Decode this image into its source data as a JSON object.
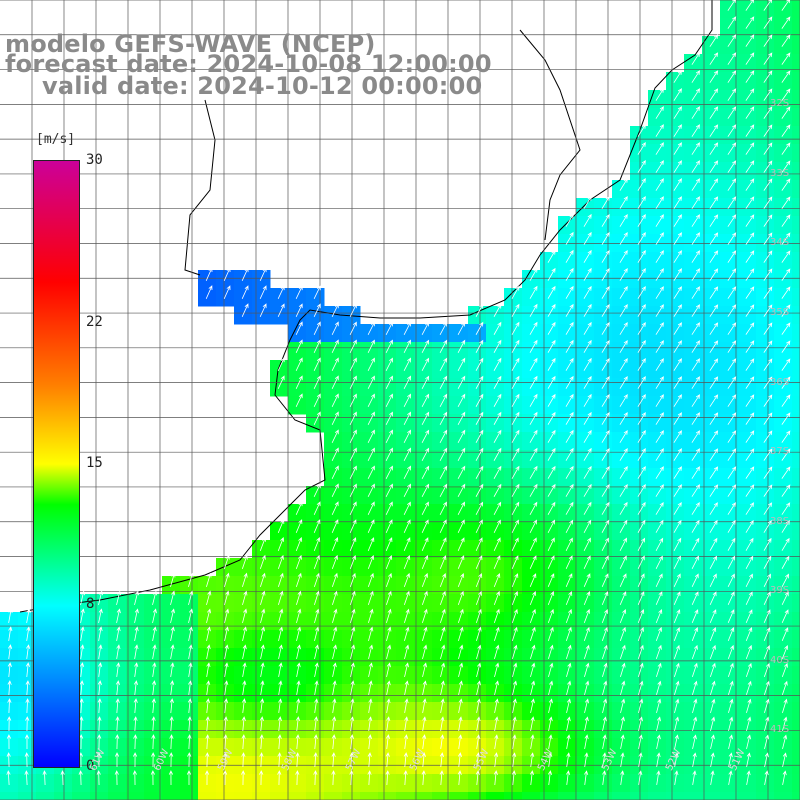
{
  "title": {
    "line1": "modelo GEFS-WAVE (NCEP)",
    "line2": "forecast date: 2024-10-08 12:00:00",
    "line3": "valid date: 2024-10-12 00:00:00"
  },
  "colorbar": {
    "unit": "[m/s]",
    "min": 0,
    "max": 30,
    "ticks": [
      {
        "label": "30",
        "value": 30
      },
      {
        "label": "22",
        "value": 22
      },
      {
        "label": "15",
        "value": 15
      },
      {
        "label": "8",
        "value": 8
      },
      {
        "label": "0",
        "value": 0
      }
    ]
  },
  "map": {
    "variable": "wind speed and direction",
    "lon_range": [
      -62.5,
      -50
    ],
    "lat_range": [
      -42,
      -30.5
    ],
    "lon_labels": [
      {
        "text": "61W",
        "lon": -61
      },
      {
        "text": "60W",
        "lon": -60
      },
      {
        "text": "59W",
        "lon": -59
      },
      {
        "text": "58W",
        "lon": -58
      },
      {
        "text": "57W",
        "lon": -57
      },
      {
        "text": "56W",
        "lon": -56
      },
      {
        "text": "55W",
        "lon": -55
      },
      {
        "text": "54W",
        "lon": -54
      },
      {
        "text": "53W",
        "lon": -53
      },
      {
        "text": "52W",
        "lon": -52
      },
      {
        "text": "51W",
        "lon": -51
      }
    ],
    "lat_labels": [
      {
        "text": "32S",
        "lat": -32
      },
      {
        "text": "33S",
        "lat": -33
      },
      {
        "text": "34S",
        "lat": -34
      },
      {
        "text": "35S",
        "lat": -35
      },
      {
        "text": "36S",
        "lat": -36
      },
      {
        "text": "37S",
        "lat": -37
      },
      {
        "text": "38S",
        "lat": -38
      },
      {
        "text": "39S",
        "lat": -39
      },
      {
        "text": "40S",
        "lat": -40
      },
      {
        "text": "41S",
        "lat": -41
      }
    ],
    "land_color": "#ffffff",
    "grid_color": "#555555",
    "arrow_color": "#ffffff"
  }
}
